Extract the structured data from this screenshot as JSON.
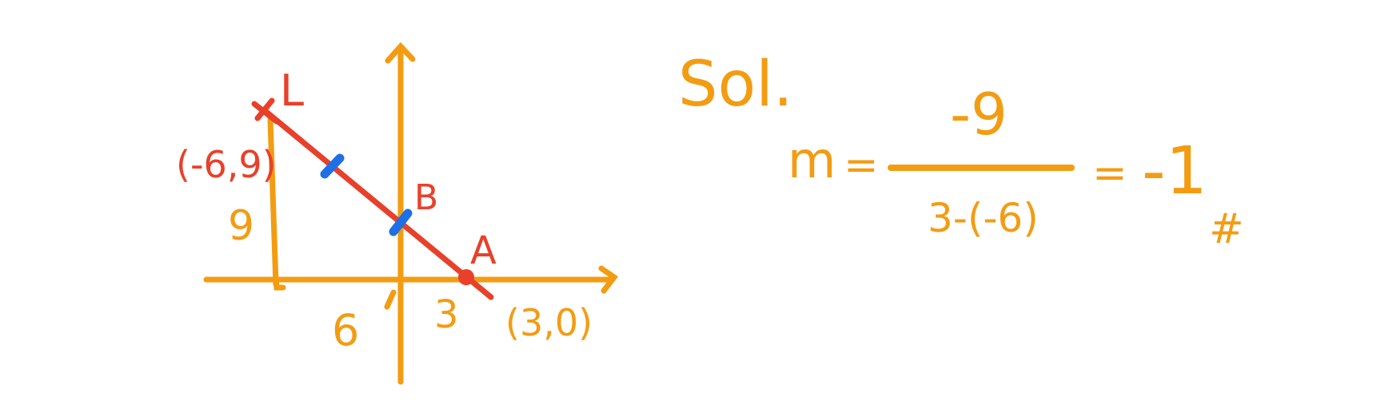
{
  "colors": {
    "ink_orange": "#f39c12",
    "ink_red": "#e8402a",
    "ink_blue": "#1f6fe5",
    "background": "#ffffff"
  },
  "graph": {
    "line_label": "L",
    "point_top_coords": "(-6,9)",
    "point_a_label": "A",
    "point_a_coords": "(3,0)",
    "point_b_label": "B",
    "height_label": "9",
    "neg_x_label": "6",
    "pos_x_label": "3"
  },
  "solution": {
    "heading": "Sol.",
    "var": "m",
    "equals_1": "=",
    "numerator": "-9",
    "denominator": "3-(-6)",
    "equals_2": "=",
    "result": "-1",
    "end_mark": "#"
  }
}
